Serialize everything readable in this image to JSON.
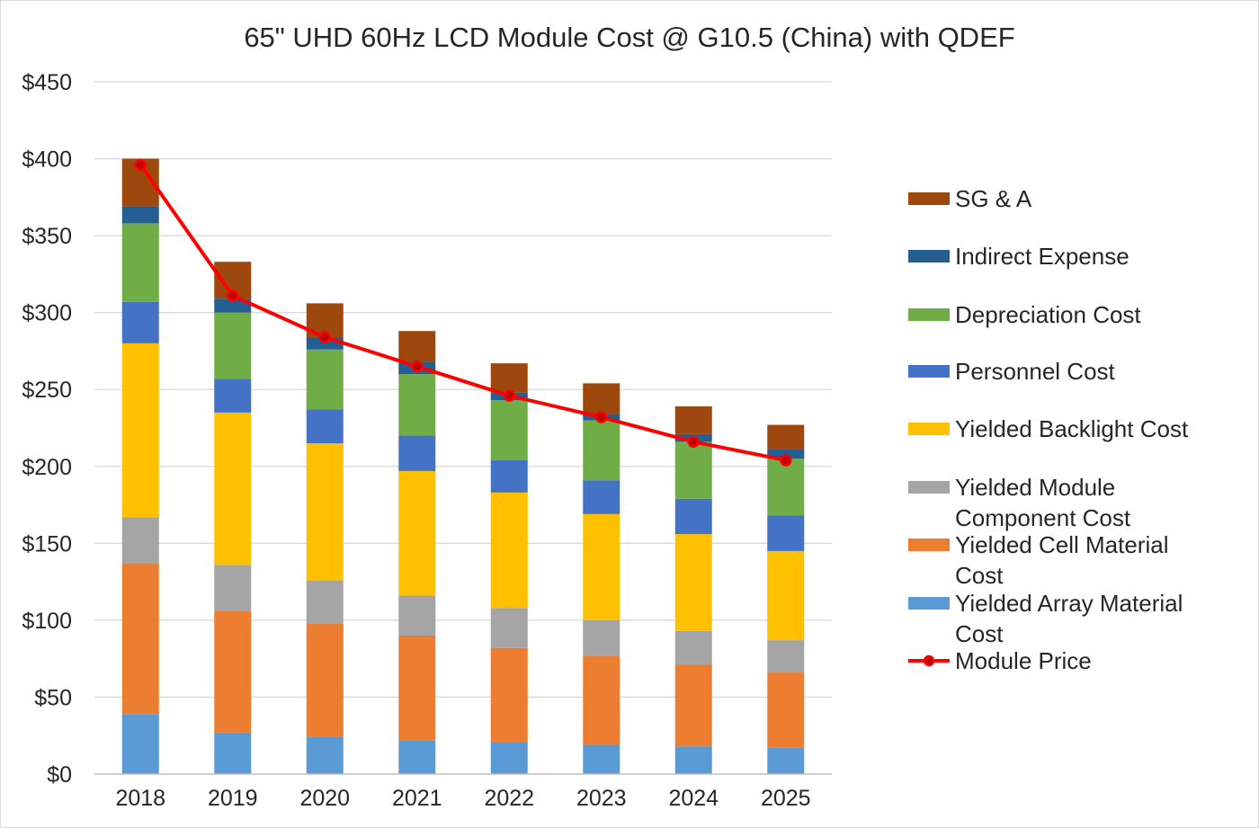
{
  "chart_data": {
    "type": "bar",
    "stacked": true,
    "title": "65\" UHD 60Hz  LCD Module Cost @ G10.5 (China) with QDEF",
    "xlabel": "",
    "ylabel": "",
    "ylim": [
      0,
      450
    ],
    "yticks": [
      0,
      50,
      100,
      150,
      200,
      250,
      300,
      350,
      400,
      450
    ],
    "ytick_labels": [
      "$0",
      "$50",
      "$100",
      "$150",
      "$200",
      "$250",
      "$300",
      "$350",
      "$400",
      "$450"
    ],
    "grid": true,
    "legend_position": "right",
    "categories": [
      "2018",
      "2019",
      "2020",
      "2021",
      "2022",
      "2023",
      "2024",
      "2025"
    ],
    "series": [
      {
        "name": "Yielded Array Material Cost",
        "legend_lines": [
          "Yielded Array Material",
          "Cost"
        ],
        "color": "#5B9BD5",
        "values": [
          39,
          27,
          24,
          22,
          21,
          19,
          18,
          17
        ]
      },
      {
        "name": "Yielded Cell Material Cost",
        "legend_lines": [
          "Yielded Cell Material",
          "Cost"
        ],
        "color": "#ED7D31",
        "values": [
          98,
          79,
          74,
          68,
          61,
          58,
          53,
          49
        ]
      },
      {
        "name": "Yielded Module Component Cost",
        "legend_lines": [
          "Yielded Module",
          "Component Cost"
        ],
        "color": "#A5A5A5",
        "values": [
          30,
          30,
          28,
          26,
          26,
          23,
          22,
          21
        ]
      },
      {
        "name": "Yielded Backlight Cost",
        "legend_lines": [
          "Yielded Backlight Cost"
        ],
        "color": "#FFC000",
        "values": [
          113,
          99,
          89,
          81,
          75,
          69,
          63,
          58
        ]
      },
      {
        "name": "Personnel Cost",
        "legend_lines": [
          "Personnel Cost"
        ],
        "color": "#4472C4",
        "values": [
          27,
          22,
          22,
          23,
          21,
          22,
          23,
          23
        ]
      },
      {
        "name": "Depreciation Cost",
        "legend_lines": [
          "Depreciation Cost"
        ],
        "color": "#70AD47",
        "values": [
          51,
          43,
          39,
          40,
          39,
          39,
          37,
          37
        ]
      },
      {
        "name": "Indirect Expense",
        "legend_lines": [
          "Indirect Expense"
        ],
        "color": "#255E91",
        "values": [
          11,
          9,
          8,
          8,
          5,
          4,
          5,
          6
        ]
      },
      {
        "name": "SG & A",
        "legend_lines": [
          "SG & A"
        ],
        "color": "#9E480E",
        "values": [
          31,
          24,
          22,
          20,
          19,
          20,
          18,
          16
        ]
      }
    ],
    "line_series": {
      "name": "Module Price",
      "legend_lines": [
        "Module Price"
      ],
      "color": "#FF0000",
      "marker_fill": "#C00000",
      "values": [
        396,
        311,
        284,
        265,
        246,
        232,
        216,
        204
      ]
    },
    "legend_order": [
      "SG & A",
      "Indirect Expense",
      "Depreciation Cost",
      "Personnel Cost",
      "Yielded Backlight Cost",
      "Yielded Module Component Cost",
      "Yielded Cell Material Cost",
      "Yielded Array Material Cost",
      "Module Price"
    ]
  }
}
